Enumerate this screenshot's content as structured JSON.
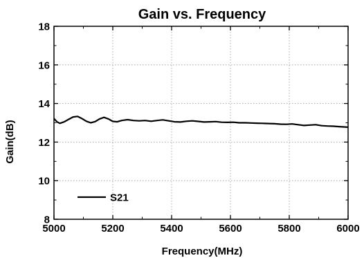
{
  "chart_data": {
    "type": "line",
    "title": "Gain vs. Frequency",
    "xlabel": "Frequency(MHz)",
    "ylabel": "Gain(dB)",
    "xlim": [
      5000,
      6000
    ],
    "ylim": [
      8,
      18
    ],
    "xticks": [
      5000,
      5200,
      5400,
      5600,
      5800,
      6000
    ],
    "yticks": [
      8,
      10,
      12,
      14,
      16,
      18
    ],
    "grid": true,
    "legend_position": "bottom-left",
    "series": [
      {
        "name": "S21",
        "color": "#000000",
        "x": [
          5000,
          5010,
          5020,
          5035,
          5050,
          5065,
          5080,
          5095,
          5110,
          5125,
          5140,
          5155,
          5170,
          5185,
          5200,
          5215,
          5230,
          5250,
          5270,
          5290,
          5310,
          5330,
          5350,
          5370,
          5390,
          5410,
          5430,
          5450,
          5470,
          5490,
          5510,
          5530,
          5550,
          5570,
          5590,
          5610,
          5630,
          5650,
          5670,
          5690,
          5710,
          5730,
          5750,
          5770,
          5790,
          5810,
          5830,
          5850,
          5870,
          5890,
          5910,
          5930,
          5950,
          5970,
          6000
        ],
        "y": [
          13.22,
          13.05,
          12.97,
          13.05,
          13.18,
          13.3,
          13.33,
          13.22,
          13.08,
          13.0,
          13.06,
          13.2,
          13.28,
          13.2,
          13.07,
          13.05,
          13.12,
          13.16,
          13.12,
          13.1,
          13.12,
          13.08,
          13.12,
          13.15,
          13.1,
          13.05,
          13.04,
          13.08,
          13.1,
          13.07,
          13.04,
          13.05,
          13.06,
          13.03,
          13.02,
          13.03,
          13.0,
          13.0,
          12.99,
          12.98,
          12.97,
          12.96,
          12.95,
          12.93,
          12.92,
          12.94,
          12.9,
          12.86,
          12.88,
          12.9,
          12.85,
          12.83,
          12.82,
          12.8,
          12.77
        ]
      }
    ]
  }
}
